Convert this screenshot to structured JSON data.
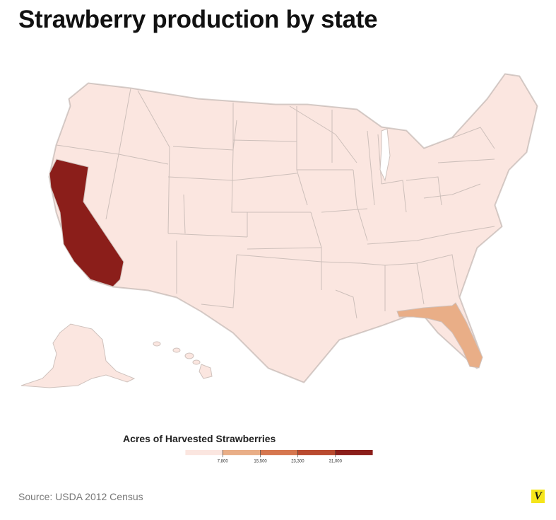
{
  "title": "Strawberry production by state",
  "legend": {
    "title": "Acres of Harvested Strawberries",
    "ticks": [
      "7,800",
      "15,500",
      "23,300",
      "31,000"
    ],
    "colors": [
      "#fbe6e0",
      "#e9ae87",
      "#d6774f",
      "#b94a2f",
      "#8b1e1a"
    ]
  },
  "source": "Source: USDA 2012 Census",
  "logo": "V",
  "colors": {
    "default_state": "#fbe6e0",
    "border": "#d0c5c2",
    "highlight_high": "#8b1e1a",
    "highlight_low": "#e9ae87"
  },
  "map_data": {
    "highlighted_states": [
      {
        "state": "California",
        "bin": 5
      },
      {
        "state": "Florida",
        "bin": 2
      }
    ]
  }
}
